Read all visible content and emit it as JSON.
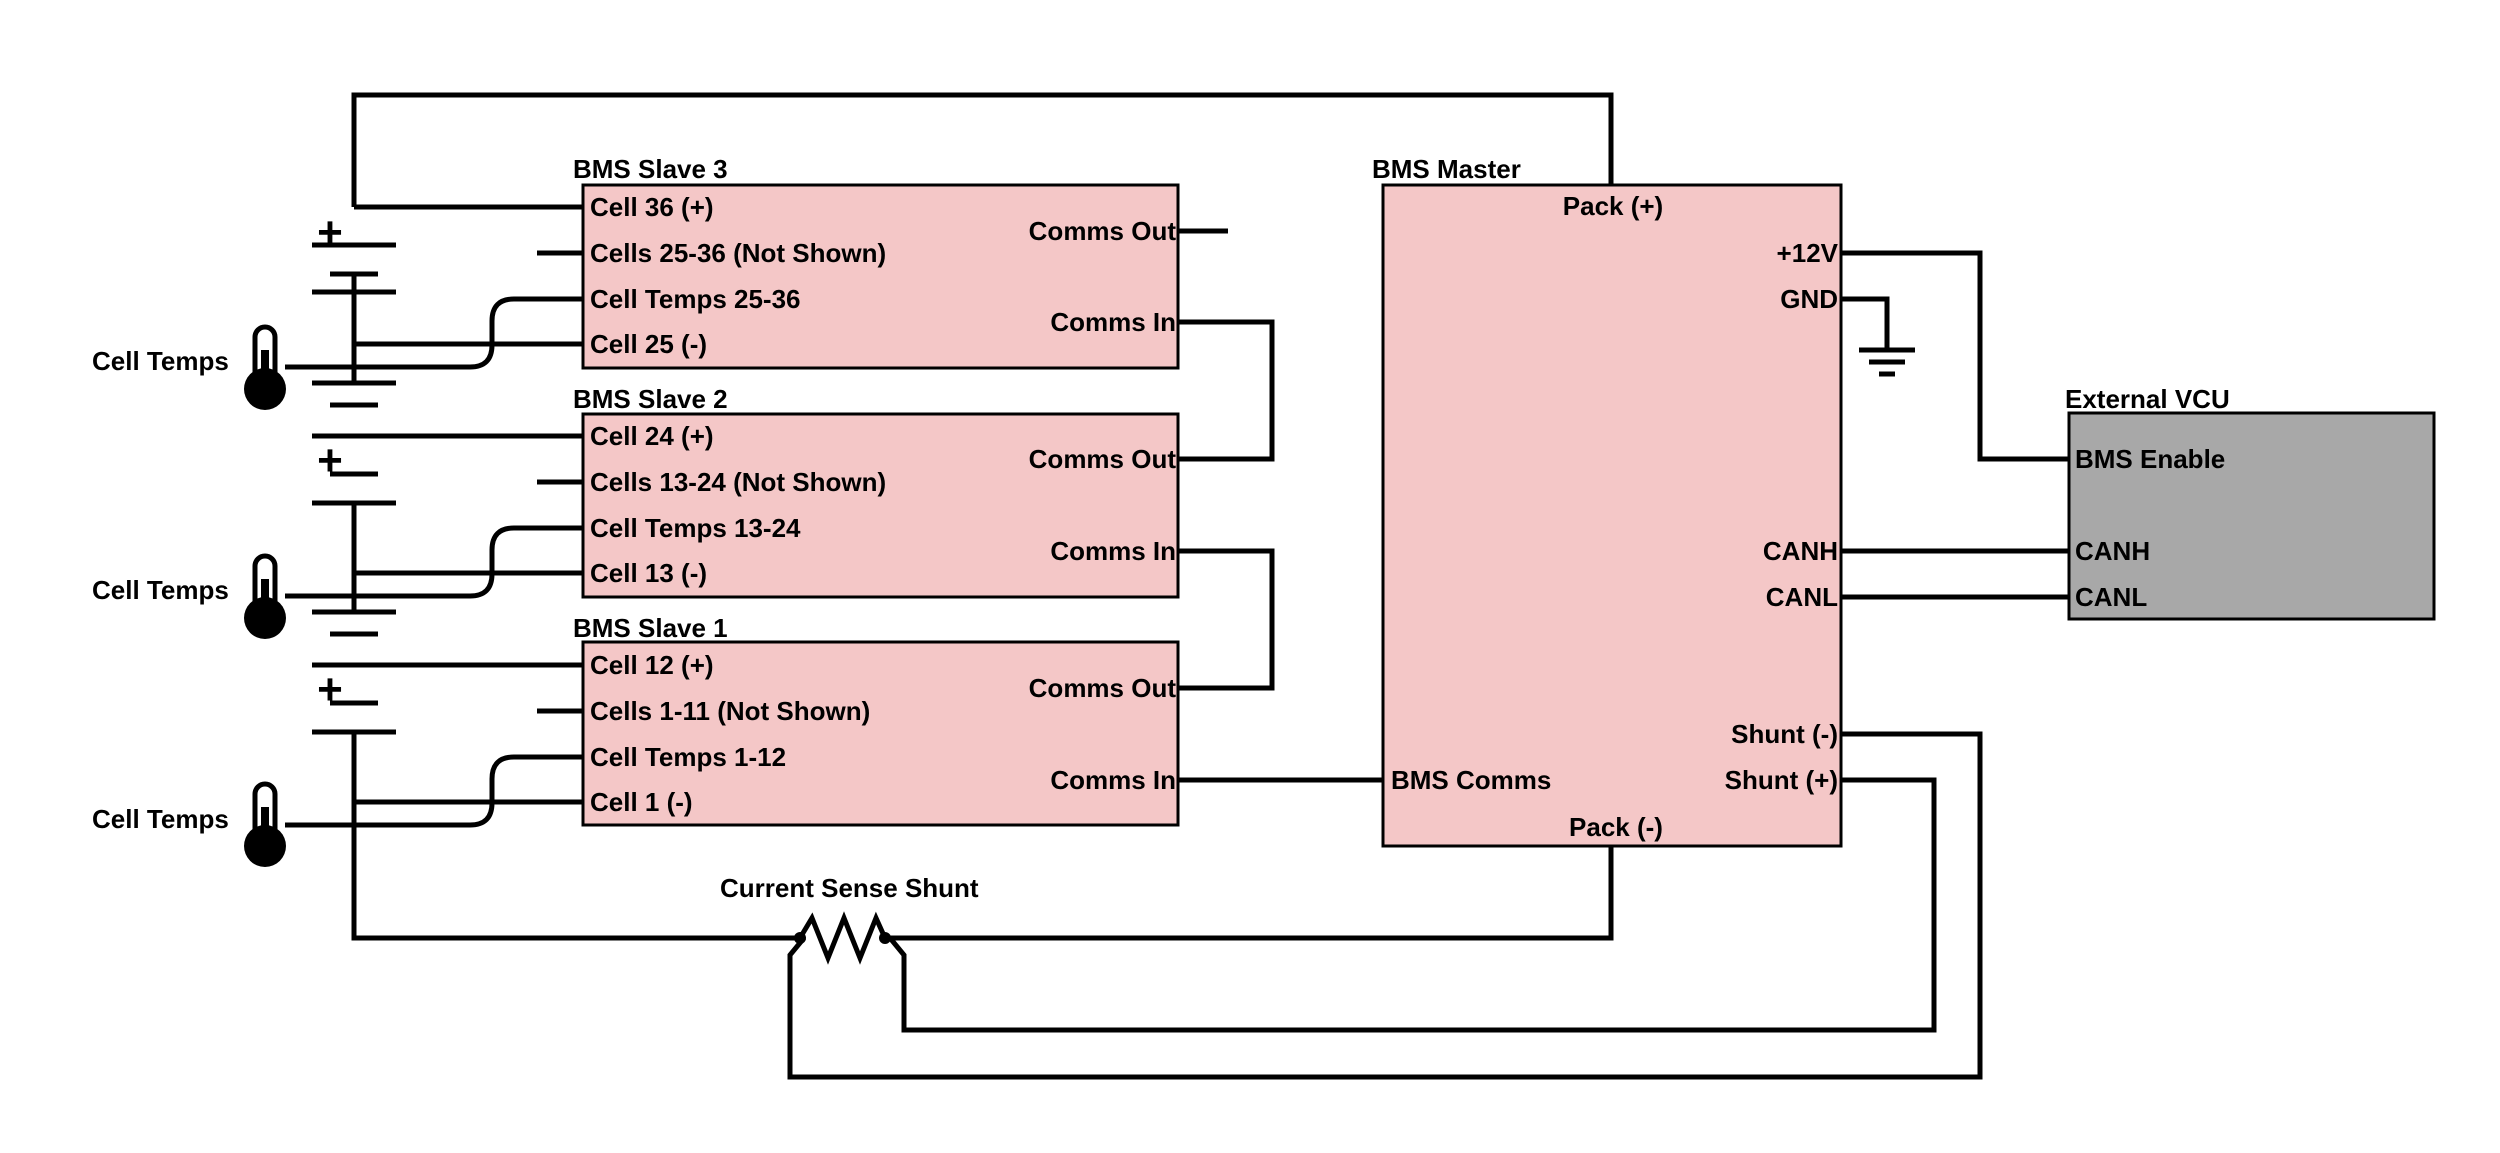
{
  "diagram": {
    "colors": {
      "module_fill": "#f4c7c7",
      "vcu_fill": "#a8a8a8",
      "wire": "#000000"
    },
    "slaves": [
      {
        "title": "BMS Slave 3",
        "pins": [
          "Cell 36 (+)",
          "Cells 25-36 (Not Shown)",
          "Cell Temps 25-36",
          "Cell 25 (-)"
        ],
        "comms_out": "Comms Out",
        "comms_in": "Comms In"
      },
      {
        "title": "BMS Slave 2",
        "pins": [
          "Cell 24 (+)",
          "Cells 13-24 (Not Shown)",
          "Cell Temps 13-24",
          "Cell 13 (-)"
        ],
        "comms_out": "Comms Out",
        "comms_in": "Comms In"
      },
      {
        "title": "BMS Slave 1",
        "pins": [
          "Cell 12 (+)",
          "Cells 1-11 (Not Shown)",
          "Cell Temps 1-12",
          "Cell 1 (-)"
        ],
        "comms_out": "Comms Out",
        "comms_in": "Comms In"
      }
    ],
    "master": {
      "title": "BMS Master",
      "pack_pos": "Pack (+)",
      "v12": "+12V",
      "gnd": "GND",
      "canh": "CANH",
      "canl": "CANL",
      "shunt_neg": "Shunt (-)",
      "shunt_pos": "Shunt (+)",
      "bms_comms": "BMS Comms",
      "pack_neg": "Pack (-)"
    },
    "vcu": {
      "title": "External VCU",
      "enable": "BMS Enable",
      "canh": "CANH",
      "canl": "CANL"
    },
    "sensors": [
      "Cell Temps",
      "Cell Temps",
      "Cell Temps"
    ],
    "battery_sign": "+",
    "shunt_label": "Current Sense Shunt",
    "icons": [
      "battery-icon",
      "thermometer-icon",
      "ground-icon",
      "resistor-icon"
    ]
  }
}
